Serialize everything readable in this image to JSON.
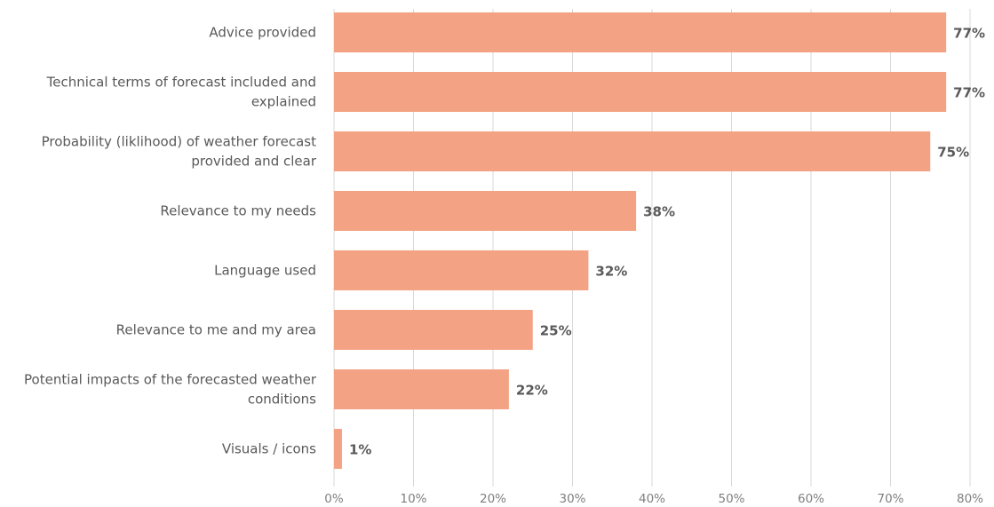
{
  "chart_data": {
    "type": "bar",
    "orientation": "horizontal",
    "categories": [
      "Advice provided",
      "Technical terms  of forecast included and explained",
      "Probability (liklihood) of weather forecast provided and clear",
      "Relevance to my needs",
      "Language used",
      "Relevance to me and my area",
      "Potential impacts of the forecasted weather conditions",
      "Visuals / icons"
    ],
    "category_lines": [
      [
        "Advice provided"
      ],
      [
        "Technical terms  of forecast included and",
        "explained"
      ],
      [
        "Probability (liklihood) of weather forecast",
        "provided and clear"
      ],
      [
        "Relevance to my needs"
      ],
      [
        "Language used"
      ],
      [
        "Relevance to me and my area"
      ],
      [
        "Potential impacts of the forecasted weather",
        "conditions"
      ],
      [
        "Visuals / icons"
      ]
    ],
    "values": [
      77,
      77,
      75,
      38,
      32,
      25,
      22,
      1
    ],
    "value_labels": [
      "77%",
      "77%",
      "75%",
      "38%",
      "32%",
      "25%",
      "22%",
      "1%"
    ],
    "xlim": [
      0,
      80
    ],
    "xticks": [
      0,
      10,
      20,
      30,
      40,
      50,
      60,
      70,
      80
    ],
    "xtick_labels": [
      "0%",
      "10%",
      "20%",
      "30%",
      "40%",
      "50%",
      "60%",
      "70%",
      "80%"
    ],
    "grid": true,
    "bar_color": "#f4a284",
    "title": "",
    "xlabel": "",
    "ylabel": ""
  }
}
